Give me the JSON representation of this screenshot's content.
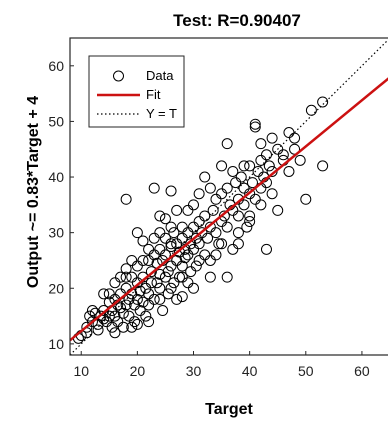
{
  "chart_data": {
    "type": "scatter",
    "title": "Test: R=0.90407",
    "xlabel": "Target",
    "ylabel": "Output ~= 0.83*Target + 4",
    "xlim": [
      8,
      65
    ],
    "ylim": [
      8,
      65
    ],
    "xticks": [
      10,
      20,
      30,
      40,
      50,
      60
    ],
    "yticks": [
      10,
      20,
      30,
      40,
      50,
      60
    ],
    "grid": false,
    "legend": {
      "placement": "top-left",
      "entries": [
        {
          "label": "Data",
          "style": "circle-marker"
        },
        {
          "label": "Fit",
          "style": "solid-red-line"
        },
        {
          "label": "Y = T",
          "style": "dotted-black-line"
        }
      ]
    },
    "colors": {
      "data": "#000000",
      "fit": "#cc1111",
      "identity": "#000000"
    },
    "fit": {
      "slope": 0.83,
      "intercept": 4
    },
    "series": [
      {
        "name": "Data",
        "points": [
          [
            9.5,
            11
          ],
          [
            10,
            11.5
          ],
          [
            11,
            13
          ],
          [
            11.5,
            15
          ],
          [
            12,
            14
          ],
          [
            12.5,
            15.5
          ],
          [
            13,
            13.5
          ],
          [
            13.5,
            15
          ],
          [
            14,
            14.5
          ],
          [
            14,
            16
          ],
          [
            14.5,
            14
          ],
          [
            15,
            15
          ],
          [
            15,
            17.5
          ],
          [
            15.5,
            13
          ],
          [
            15.5,
            16
          ],
          [
            16,
            15
          ],
          [
            16,
            18
          ],
          [
            16.5,
            14
          ],
          [
            16.5,
            17
          ],
          [
            17,
            16.5
          ],
          [
            17,
            19
          ],
          [
            17.5,
            13
          ],
          [
            17.5,
            15.5
          ],
          [
            18,
            17
          ],
          [
            18,
            20
          ],
          [
            18.5,
            18
          ],
          [
            18.5,
            15
          ],
          [
            19,
            19
          ],
          [
            19,
            22
          ],
          [
            19.5,
            17
          ],
          [
            19.5,
            14
          ],
          [
            20,
            18
          ],
          [
            20,
            21
          ],
          [
            20,
            24
          ],
          [
            20.5,
            16
          ],
          [
            20.5,
            19.5
          ],
          [
            21,
            17.5
          ],
          [
            21,
            22
          ],
          [
            21.5,
            20
          ],
          [
            21.5,
            15
          ],
          [
            22,
            19
          ],
          [
            22,
            25
          ],
          [
            22.5,
            21
          ],
          [
            22.5,
            23
          ],
          [
            23,
            18
          ],
          [
            23,
            26
          ],
          [
            23.5,
            21
          ],
          [
            23.5,
            24.5
          ],
          [
            24,
            20
          ],
          [
            24,
            22.5
          ],
          [
            24,
            27
          ],
          [
            24.5,
            16
          ],
          [
            24.5,
            25
          ],
          [
            25,
            22
          ],
          [
            25,
            26
          ],
          [
            25,
            29
          ],
          [
            25.5,
            23
          ],
          [
            25.5,
            19
          ],
          [
            26,
            24
          ],
          [
            26,
            27.5
          ],
          [
            26.5,
            21
          ],
          [
            26.5,
            30
          ],
          [
            27,
            25
          ],
          [
            27,
            28
          ],
          [
            27.5,
            22
          ],
          [
            27.5,
            26.5
          ],
          [
            28,
            24
          ],
          [
            28,
            29
          ],
          [
            28,
            31
          ],
          [
            28.5,
            27
          ],
          [
            28.5,
            25.5
          ],
          [
            29,
            26
          ],
          [
            29,
            30
          ],
          [
            29.5,
            28
          ],
          [
            29.5,
            23
          ],
          [
            30,
            27
          ],
          [
            30,
            31
          ],
          [
            30,
            35
          ],
          [
            30.5,
            29
          ],
          [
            30.5,
            24
          ],
          [
            31,
            28
          ],
          [
            31,
            32
          ],
          [
            31.5,
            30
          ],
          [
            32,
            26
          ],
          [
            32,
            33
          ],
          [
            32.5,
            29
          ],
          [
            33,
            31
          ],
          [
            33,
            22
          ],
          [
            33.5,
            34
          ],
          [
            34,
            30
          ],
          [
            34,
            36
          ],
          [
            34.5,
            28
          ],
          [
            35,
            32
          ],
          [
            35,
            37
          ],
          [
            35.5,
            33
          ],
          [
            36,
            31
          ],
          [
            36,
            38
          ],
          [
            36.5,
            35
          ],
          [
            37,
            34
          ],
          [
            37,
            27
          ],
          [
            37.5,
            39
          ],
          [
            38,
            33
          ],
          [
            38,
            36
          ],
          [
            38.5,
            40
          ],
          [
            39,
            35
          ],
          [
            39,
            38
          ],
          [
            39.5,
            31
          ],
          [
            40,
            37
          ],
          [
            40,
            42
          ],
          [
            40.5,
            39
          ],
          [
            41,
            36
          ],
          [
            41,
            49.5
          ],
          [
            41,
            49
          ],
          [
            41.5,
            41
          ],
          [
            42,
            38
          ],
          [
            42,
            43
          ],
          [
            42.5,
            40
          ],
          [
            43,
            44
          ],
          [
            43,
            39
          ],
          [
            43.5,
            42
          ],
          [
            44,
            41
          ],
          [
            45,
            45
          ],
          [
            46,
            43
          ],
          [
            47,
            48
          ],
          [
            48,
            47
          ],
          [
            49,
            43
          ],
          [
            50,
            36
          ],
          [
            51,
            52
          ],
          [
            53,
            53.5
          ],
          [
            53,
            42
          ],
          [
            18,
            36
          ],
          [
            23,
            38
          ],
          [
            26,
            37.5
          ],
          [
            24,
            33
          ],
          [
            20,
            30
          ],
          [
            21,
            28.5
          ],
          [
            32,
            40
          ],
          [
            36,
            46
          ],
          [
            35,
            42
          ],
          [
            45,
            34
          ],
          [
            43,
            27
          ],
          [
            40,
            32
          ],
          [
            38,
            28
          ],
          [
            36,
            22
          ],
          [
            27,
            18
          ],
          [
            28,
            18.5
          ],
          [
            22,
            17
          ],
          [
            19,
            13
          ],
          [
            16,
            12
          ],
          [
            13,
            12.5
          ],
          [
            11,
            12
          ],
          [
            12,
            16
          ],
          [
            15,
            19
          ],
          [
            18,
            22
          ],
          [
            21,
            25
          ],
          [
            23,
            29
          ],
          [
            26,
            31
          ],
          [
            29,
            34
          ],
          [
            31,
            37
          ],
          [
            33,
            38
          ],
          [
            37,
            41
          ],
          [
            39,
            42
          ],
          [
            42,
            46
          ],
          [
            44,
            47
          ],
          [
            46,
            44
          ],
          [
            48,
            45
          ],
          [
            25,
            32.5
          ],
          [
            27,
            34
          ],
          [
            29,
            21
          ],
          [
            31,
            25
          ],
          [
            34,
            26
          ],
          [
            38,
            30
          ],
          [
            40,
            33
          ],
          [
            42,
            35
          ],
          [
            44,
            37
          ],
          [
            47,
            41
          ],
          [
            20,
            13.5
          ],
          [
            22,
            14
          ],
          [
            24,
            18
          ],
          [
            26,
            20
          ],
          [
            28,
            22
          ],
          [
            30,
            20
          ],
          [
            33,
            25
          ],
          [
            35,
            28
          ],
          [
            17,
            22
          ],
          [
            19,
            25
          ],
          [
            14,
            19
          ],
          [
            16,
            21
          ],
          [
            18,
            23.5
          ],
          [
            22,
            27
          ],
          [
            24,
            30
          ],
          [
            26,
            28
          ]
        ]
      }
    ]
  }
}
